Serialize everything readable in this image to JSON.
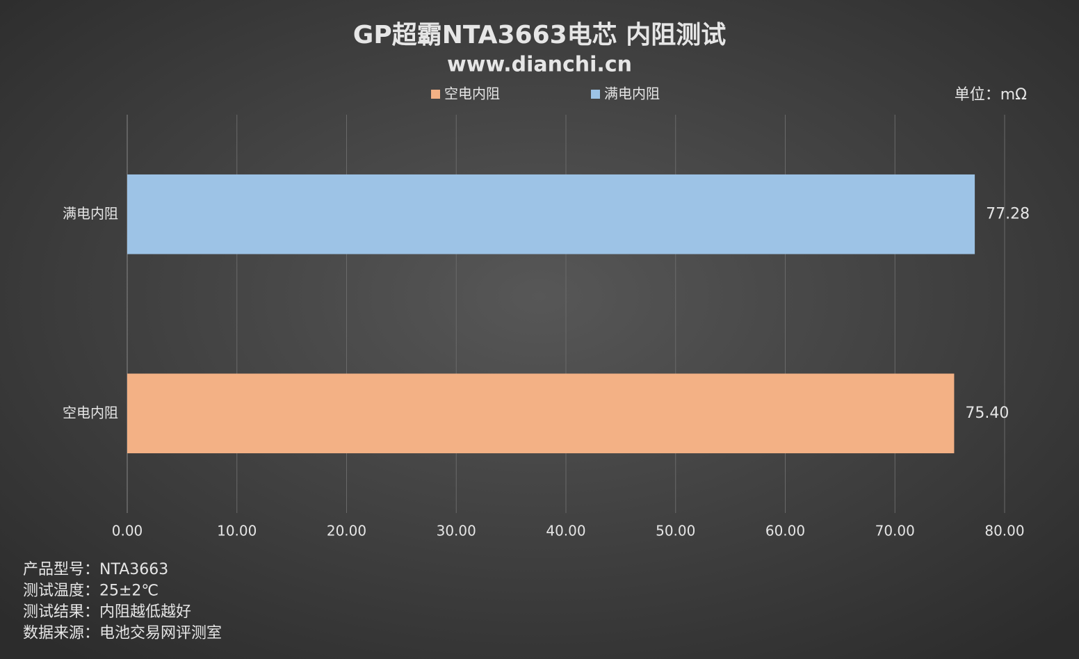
{
  "chart_data": {
    "type": "bar",
    "orientation": "horizontal",
    "title": "GP超霸NTA3663电芯 内阻测试",
    "subtitle": "www.dianchi.cn",
    "unit_label": "单位：mΩ",
    "categories": [
      "空电内阻",
      "满电内阻"
    ],
    "series": [
      {
        "name": "空电内阻",
        "color": "#f3b185",
        "values": [
          75.4,
          null
        ],
        "value_labels": [
          "75.40",
          null
        ]
      },
      {
        "name": "满电内阻",
        "color": "#9dc3e6",
        "values": [
          null,
          77.28
        ],
        "value_labels": [
          null,
          "77.28"
        ]
      }
    ],
    "xlim": [
      0,
      80
    ],
    "xticks": [
      {
        "value": 0,
        "label": "0.00"
      },
      {
        "value": 10,
        "label": "10.00"
      },
      {
        "value": 20,
        "label": "20.00"
      },
      {
        "value": 30,
        "label": "30.00"
      },
      {
        "value": 40,
        "label": "40.00"
      },
      {
        "value": 50,
        "label": "50.00"
      },
      {
        "value": 60,
        "label": "60.00"
      },
      {
        "value": 70,
        "label": "70.00"
      },
      {
        "value": 80,
        "label": "80.00"
      }
    ],
    "grid": true,
    "legend": "top",
    "notes": [
      "产品型号：NTA3663",
      "测试温度：25±2℃",
      "测试结果：内阻越低越好",
      "数据来源：电池交易网评测室"
    ]
  }
}
